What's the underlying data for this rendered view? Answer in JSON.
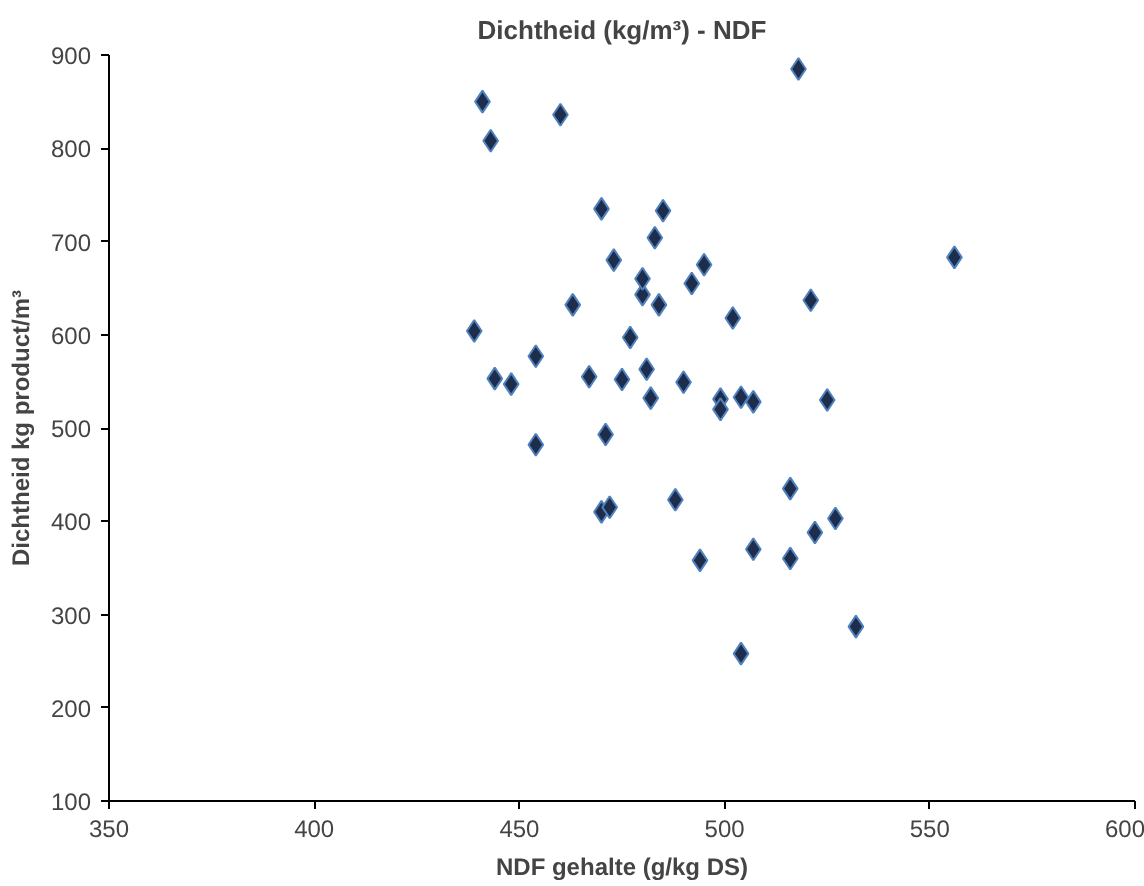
{
  "chart_data": {
    "type": "scatter",
    "title": "Dichtheid (kg/m³) - NDF",
    "xlabel": "NDF gehalte (g/kg DS)",
    "ylabel": "Dichtheid kg product/m³",
    "x": [
      441,
      443,
      460,
      439,
      444,
      448,
      454,
      454,
      463,
      467,
      470,
      473,
      471,
      470,
      472,
      475,
      477,
      480,
      480,
      481,
      482,
      483,
      484,
      485,
      488,
      490,
      492,
      495,
      494,
      499,
      499,
      502,
      504,
      504,
      507,
      507,
      516,
      516,
      518,
      521,
      522,
      525,
      527,
      532,
      556
    ],
    "series": [
      {
        "color": "#1f2d4d",
        "values": [
          850,
          808,
          836,
          604,
          553,
          547,
          577,
          482,
          632,
          555,
          735,
          680,
          493,
          410,
          415,
          552,
          597,
          643,
          660,
          563,
          532,
          704,
          632,
          733,
          423,
          549,
          655,
          675,
          358,
          531,
          520,
          618,
          533,
          258,
          528,
          370,
          435,
          360,
          885,
          637,
          388,
          530,
          403,
          287,
          683
        ]
      }
    ],
    "marker": "diamond",
    "xlim": [
      350,
      600
    ],
    "ylim": [
      100,
      900
    ],
    "xticks": [
      350,
      400,
      450,
      500,
      550,
      600
    ],
    "yticks": [
      100,
      200,
      300,
      400,
      500,
      600,
      700,
      800,
      900
    ],
    "grid": false
  }
}
